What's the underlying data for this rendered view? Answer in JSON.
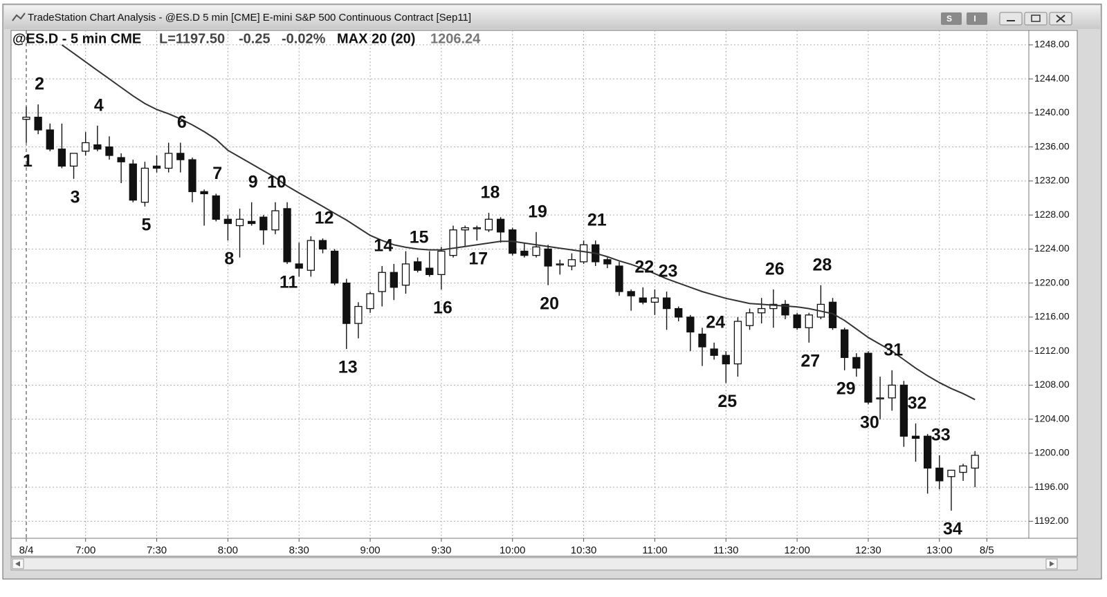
{
  "window_title": "TradeStation Chart Analysis - @ES.D 5 min  [CME] E-mini S&P 500 Continuous Contract [Sep11]",
  "window_buttons": [
    "S",
    "I"
  ],
  "header": {
    "symbol": "@ES.D - 5 min CME",
    "last": "L=1197.50",
    "change": "-0.25",
    "change_pct": "-0.02%",
    "indicator": "MAX 20 (20)",
    "indicator_value": "1206.24"
  },
  "chart_data": {
    "type": "candlestick",
    "categories": [
      "8/4",
      null,
      null,
      null,
      null,
      "7:00",
      null,
      null,
      null,
      null,
      null,
      "7:30",
      null,
      null,
      null,
      null,
      null,
      "8:00",
      null,
      null,
      null,
      null,
      null,
      "8:30",
      null,
      null,
      null,
      null,
      null,
      "9:00",
      null,
      null,
      null,
      null,
      null,
      "9:30",
      null,
      null,
      null,
      null,
      null,
      "10:00",
      null,
      null,
      null,
      null,
      null,
      "10:30",
      null,
      null,
      null,
      null,
      null,
      "11:00",
      null,
      null,
      null,
      null,
      null,
      "11:30",
      null,
      null,
      null,
      null,
      null,
      "12:00",
      null,
      null,
      null,
      null,
      null,
      "12:30",
      null,
      null,
      null,
      null,
      null,
      "13:00",
      null,
      null,
      null,
      "8/5"
    ],
    "open": [
      1239.25,
      1239.5,
      1238.0,
      1235.75,
      1233.75,
      1235.5,
      1236.25,
      1236.0,
      1234.75,
      1234.0,
      1229.5,
      1233.75,
      1233.5,
      1235.25,
      1234.5,
      1230.75,
      1230.25,
      1227.5,
      1226.75,
      1227.25,
      1227.75,
      1226.25,
      1228.75,
      1222.25,
      1221.5,
      1225.0,
      1223.75,
      1220.0,
      1215.25,
      1217.0,
      1219.0,
      1221.25,
      1219.75,
      1222.5,
      1221.75,
      1221.0,
      1223.25,
      1226.25,
      1226.5,
      1226.25,
      1227.5,
      1226.25,
      1223.75,
      1223.25,
      1224.0,
      1222.25,
      1222.0,
      1222.5,
      1224.5,
      1222.75,
      1222.0,
      1219.0,
      1218.25,
      1217.75,
      1218.25,
      1217.0,
      1216.0,
      1214.0,
      1212.25,
      1211.5,
      1210.5,
      1215.0,
      1216.5,
      1217.0,
      1217.5,
      1216.25,
      1214.75,
      1216.0,
      1217.75,
      1214.5,
      1211.25,
      1211.75,
      1206.5,
      1206.5,
      1208.0,
      1202.0,
      1202.0,
      1198.25,
      1197.25,
      1197.75,
      1198.25,
      null
    ],
    "high": [
      1240.75,
      1241.0,
      1238.75,
      1238.75,
      1234.75,
      1237.75,
      1238.5,
      1237.25,
      1235.25,
      1234.5,
      1234.25,
      1235.0,
      1236.5,
      1236.5,
      1234.75,
      1231.0,
      1230.5,
      1228.0,
      1228.75,
      1229.5,
      1228.0,
      1229.5,
      1229.5,
      1224.75,
      1225.5,
      1225.25,
      1224.0,
      1220.5,
      1217.75,
      1219.0,
      1222.0,
      1222.25,
      1223.75,
      1223.0,
      1223.75,
      1224.25,
      1226.75,
      1226.75,
      1226.75,
      1228.25,
      1227.75,
      1226.5,
      1224.75,
      1226.0,
      1224.5,
      1222.75,
      1223.5,
      1225.0,
      1225.0,
      1223.0,
      1222.5,
      1219.25,
      1219.5,
      1219.25,
      1219.0,
      1217.25,
      1216.25,
      1214.75,
      1213.0,
      1212.0,
      1216.0,
      1217.0,
      1218.25,
      1219.25,
      1218.0,
      1216.5,
      1216.5,
      1219.75,
      1218.25,
      1214.75,
      1211.75,
      1212.0,
      1209.0,
      1209.75,
      1208.5,
      1203.5,
      1202.25,
      1199.75,
      1197.75,
      1198.75,
      1200.25,
      null
    ],
    "low": [
      1236.5,
      1237.5,
      1235.5,
      1233.5,
      1232.25,
      1235.0,
      1235.5,
      1234.5,
      1231.75,
      1229.5,
      1229.0,
      1233.0,
      1233.0,
      1233.0,
      1229.5,
      1226.75,
      1227.25,
      1225.0,
      1223.0,
      1226.75,
      1224.5,
      1225.75,
      1222.25,
      1220.75,
      1220.75,
      1223.5,
      1219.75,
      1212.25,
      1213.5,
      1216.5,
      1217.25,
      1218.0,
      1218.75,
      1221.25,
      1220.75,
      1219.25,
      1223.0,
      1224.25,
      1225.0,
      1226.0,
      1224.75,
      1223.25,
      1223.0,
      1223.0,
      1219.75,
      1221.0,
      1221.5,
      1222.25,
      1222.0,
      1221.75,
      1218.5,
      1216.75,
      1217.5,
      1216.25,
      1214.5,
      1215.5,
      1212.0,
      1210.25,
      1211.0,
      1208.25,
      1209.0,
      1214.5,
      1215.25,
      1214.75,
      1215.75,
      1214.5,
      1213.0,
      1215.75,
      1214.5,
      1209.75,
      1209.0,
      1205.75,
      1204.0,
      1205.0,
      1200.75,
      1199.0,
      1195.25,
      1195.75,
      1193.25,
      1196.75,
      1196.0,
      null
    ],
    "close": [
      1239.5,
      1238.0,
      1235.75,
      1233.75,
      1235.25,
      1236.5,
      1235.75,
      1235.0,
      1234.25,
      1229.75,
      1233.5,
      1233.5,
      1235.25,
      1234.5,
      1230.75,
      1230.5,
      1227.5,
      1227.0,
      1227.5,
      1227.0,
      1226.25,
      1228.5,
      1222.5,
      1221.75,
      1225.0,
      1224.0,
      1220.0,
      1215.25,
      1217.25,
      1218.75,
      1221.25,
      1219.5,
      1222.25,
      1221.5,
      1221.0,
      1223.75,
      1226.25,
      1226.5,
      1226.5,
      1227.5,
      1226.0,
      1223.5,
      1223.25,
      1224.25,
      1222.0,
      1222.25,
      1222.75,
      1224.5,
      1222.5,
      1222.25,
      1219.0,
      1218.5,
      1217.75,
      1218.25,
      1217.0,
      1216.0,
      1214.25,
      1212.5,
      1211.5,
      1210.5,
      1215.5,
      1216.5,
      1217.0,
      1217.5,
      1216.25,
      1214.75,
      1216.25,
      1217.5,
      1214.75,
      1211.25,
      1210.0,
      1206.0,
      1206.5,
      1208.0,
      1202.0,
      1201.75,
      1198.25,
      1196.75,
      1198.0,
      1198.5,
      1199.75,
      null
    ],
    "up_color": "#ffffff",
    "down_color": "#111111",
    "ma": {
      "color": "#333333",
      "values": [
        null,
        null,
        null,
        1248.0,
        1247.0,
        1246.0,
        1245.0,
        1244.0,
        1243.0,
        1242.0,
        1241.1,
        1240.4,
        1239.9,
        1239.3,
        1238.6,
        1237.8,
        1236.9,
        1235.6,
        1234.8,
        1234.0,
        1233.2,
        1232.4,
        1231.4,
        1230.6,
        1229.8,
        1229.0,
        1228.2,
        1227.4,
        1226.5,
        1225.6,
        1225.0,
        1224.5,
        1224.2,
        1224.0,
        1223.9,
        1223.9,
        1224.1,
        1224.3,
        1224.5,
        1224.7,
        1224.9,
        1224.9,
        1224.7,
        1224.5,
        1224.3,
        1224.1,
        1223.9,
        1223.7,
        1223.5,
        1223.1,
        1222.6,
        1222.2,
        1221.7,
        1221.1,
        1220.5,
        1220.0,
        1219.5,
        1219.0,
        1218.6,
        1218.2,
        1217.9,
        1217.6,
        1217.5,
        1217.4,
        1217.3,
        1217.2,
        1217.0,
        1216.7,
        1216.4,
        1215.6,
        1214.6,
        1213.6,
        1212.8,
        1212.0,
        1211.0,
        1210.0,
        1209.1,
        1208.3,
        1207.6,
        1207.0,
        1206.3,
        null
      ]
    },
    "ylim": [
      1190.0,
      1249.7
    ],
    "yticks": [
      {
        "value": 1192,
        "label": "1192.00"
      },
      {
        "value": 1196,
        "label": "1196.00"
      },
      {
        "value": 1200,
        "label": "1200.00"
      },
      {
        "value": 1204,
        "label": "1204.00"
      },
      {
        "value": 1208,
        "label": "1208.00"
      },
      {
        "value": 1212,
        "label": "1212.00"
      },
      {
        "value": 1216,
        "label": "1216.00"
      },
      {
        "value": 1220,
        "label": "1220.00"
      },
      {
        "value": 1224,
        "label": "1224.00"
      },
      {
        "value": 1228,
        "label": "1228.00"
      },
      {
        "value": 1232,
        "label": "1232.00"
      },
      {
        "value": 1236,
        "label": "1236.00"
      },
      {
        "value": 1240,
        "label": "1240.00"
      },
      {
        "value": 1244,
        "label": "1244.00"
      },
      {
        "value": 1248,
        "label": "1248.00"
      }
    ],
    "grid": true,
    "annotations": [
      "1",
      "2",
      "3",
      "4",
      "5",
      "6",
      "7",
      "8",
      "9",
      "10",
      "11",
      "12",
      "13",
      "14",
      "15",
      "16",
      "17",
      "18",
      "19",
      "20",
      "21",
      "22",
      "23",
      "24",
      "25",
      "26",
      "27",
      "28",
      "29",
      "30",
      "31",
      "32",
      "33",
      "34"
    ]
  }
}
